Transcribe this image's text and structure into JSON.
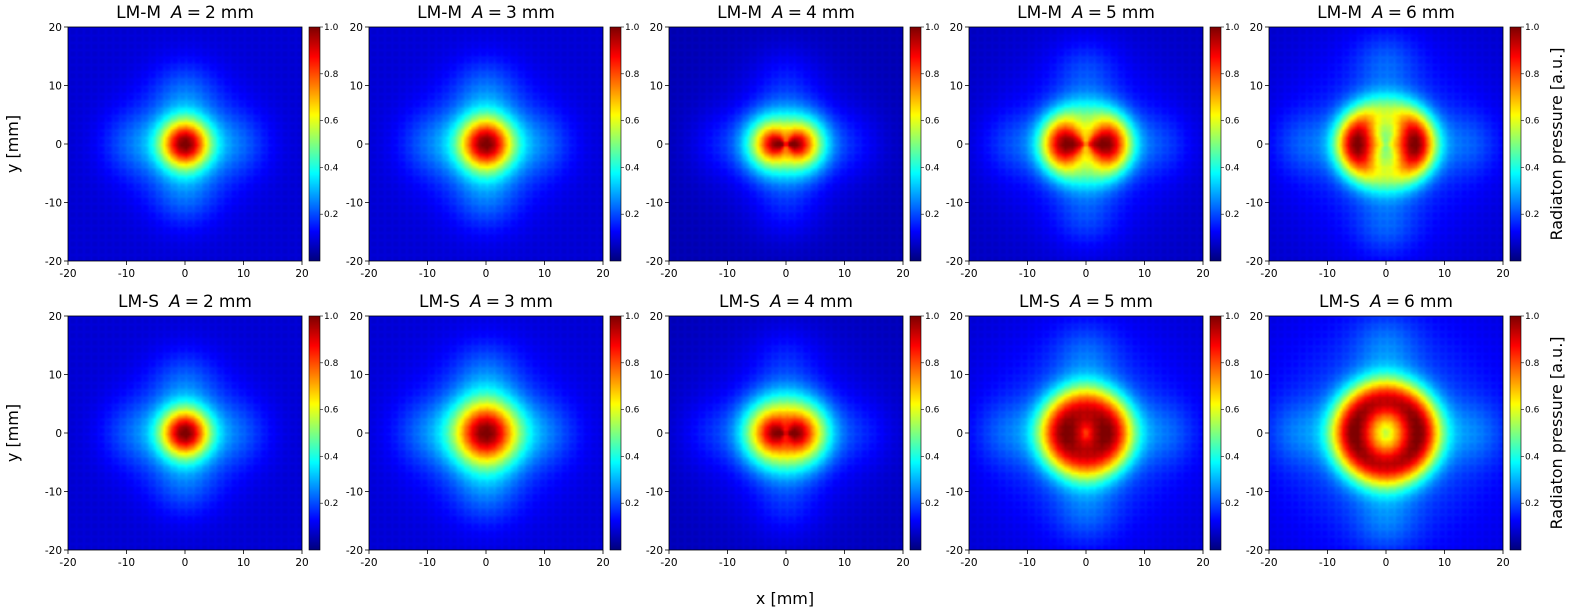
{
  "figure": {
    "xlabel": "x [mm]",
    "ylabel": "y [mm]",
    "colorbar_label": "Radiaton pressure [a.u.]"
  },
  "chart_data": {
    "type": "heatmap",
    "rows": [
      "LM-M",
      "LM-S"
    ],
    "amplitudes_mm": [
      2,
      3,
      4,
      5,
      6
    ],
    "title_template": "{row}  A = {A} mm",
    "xlim": [
      -20,
      20
    ],
    "ylim": [
      -20,
      20
    ],
    "xticks": [
      -20,
      -10,
      0,
      10,
      20
    ],
    "yticks": [
      -20,
      -10,
      0,
      10,
      20
    ],
    "colorbar_range": [
      0,
      1
    ],
    "colorbar_ticks": [
      0.2,
      0.4,
      0.6,
      0.8,
      1.0
    ],
    "colormap": "jet",
    "colormap_stops": [
      "#00007f",
      "#0000ff",
      "#007fff",
      "#00ffff",
      "#7fff7f",
      "#ffff00",
      "#ff7f00",
      "#ff0000",
      "#7f0000"
    ],
    "panels": [
      {
        "row": "LM-M",
        "A": 2,
        "focus_radius_mm": 4.0,
        "ring_radius_mm": 0.0,
        "ring_width_mm": 3.0,
        "center_dip": 0.0,
        "horizontal_lobes": 0.0,
        "side_lobe": 0.22
      },
      {
        "row": "LM-M",
        "A": 3,
        "focus_radius_mm": 4.5,
        "ring_radius_mm": 0.0,
        "ring_width_mm": 3.3,
        "center_dip": 0.0,
        "horizontal_lobes": 0.0,
        "side_lobe": 0.22
      },
      {
        "row": "LM-M",
        "A": 4,
        "focus_radius_mm": 6.0,
        "ring_radius_mm": 2.5,
        "ring_width_mm": 3.2,
        "center_dip": 0.05,
        "horizontal_lobes": 0.35,
        "side_lobe": 0.24
      },
      {
        "row": "LM-M",
        "A": 5,
        "focus_radius_mm": 7.5,
        "ring_radius_mm": 4.0,
        "ring_width_mm": 2.8,
        "center_dip": 0.35,
        "horizontal_lobes": 0.4,
        "side_lobe": 0.26
      },
      {
        "row": "LM-M",
        "A": 6,
        "focus_radius_mm": 9.0,
        "ring_radius_mm": 5.0,
        "ring_width_mm": 2.6,
        "center_dip": 0.65,
        "horizontal_lobes": 0.35,
        "side_lobe": 0.26
      },
      {
        "row": "LM-S",
        "A": 2,
        "focus_radius_mm": 4.0,
        "ring_radius_mm": 0.0,
        "ring_width_mm": 3.0,
        "center_dip": 0.0,
        "horizontal_lobes": 0.0,
        "side_lobe": 0.2
      },
      {
        "row": "LM-S",
        "A": 3,
        "focus_radius_mm": 5.5,
        "ring_radius_mm": 0.0,
        "ring_width_mm": 4.0,
        "center_dip": 0.0,
        "horizontal_lobes": 0.0,
        "side_lobe": 0.2
      },
      {
        "row": "LM-S",
        "A": 4,
        "focus_radius_mm": 7.5,
        "ring_radius_mm": 3.0,
        "ring_width_mm": 3.4,
        "center_dip": 0.1,
        "horizontal_lobes": 0.2,
        "side_lobe": 0.22
      },
      {
        "row": "LM-S",
        "A": 5,
        "focus_radius_mm": 8.5,
        "ring_radius_mm": 4.2,
        "ring_width_mm": 3.0,
        "center_dip": 0.55,
        "horizontal_lobes": 0.05,
        "side_lobe": 0.22
      },
      {
        "row": "LM-S",
        "A": 6,
        "focus_radius_mm": 10.0,
        "ring_radius_mm": 5.5,
        "ring_width_mm": 2.9,
        "center_dip": 0.75,
        "horizontal_lobes": 0.05,
        "side_lobe": 0.22
      }
    ]
  }
}
